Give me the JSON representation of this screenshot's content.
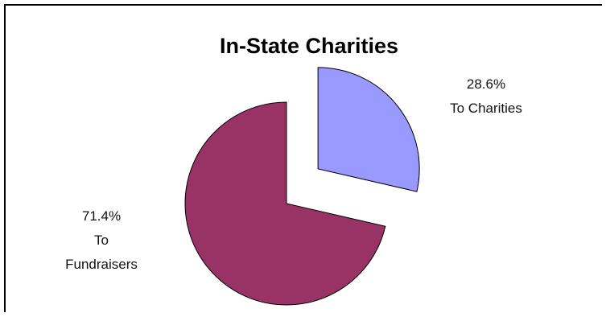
{
  "chart_data": {
    "type": "pie",
    "title": "In-State Charities",
    "slices": [
      {
        "label_pct": "28.6%",
        "label_text": [
          "To Charities"
        ],
        "value": 28.6,
        "color": "#9999FF",
        "exploded": true
      },
      {
        "label_pct": "71.4%",
        "label_text": [
          "To",
          "Fundraisers"
        ],
        "value": 71.4,
        "color": "#993366",
        "exploded": false
      }
    ],
    "legend": "none"
  }
}
